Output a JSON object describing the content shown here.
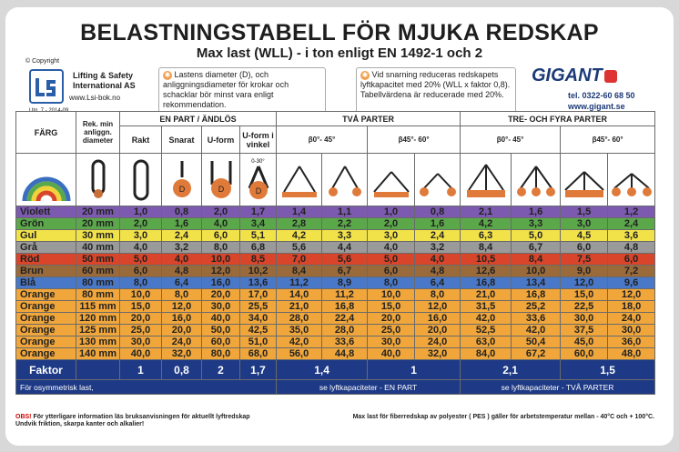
{
  "header": {
    "title": "BELASTNINGSTABELL FÖR MJUKA REDSKAP",
    "subtitle": "Max last (WLL) - i ton enligt EN 1492-1 och 2",
    "copyright": "© Copyright",
    "company_line1": "Lifting & Safety",
    "company_line2": "International AS",
    "company_web": "www.Lsi-bok.no",
    "edition": "Utg. 7 - 2014-09",
    "note1": "Lastens diameter (D), och anliggningsdiameter för krokar och schacklar bör minst vara enligt rekommendation.",
    "note2": "Vid snarning reduceras redskapets lyftkapacitet med 20% (WLL x faktor 0,8). Tabellvärdena är reducerade med 20%.",
    "brand": "GIGANT",
    "tel": "tel. 0322-60 68 50",
    "brand_web": "www.gigant.se"
  },
  "table": {
    "col_farg": "FÄRG",
    "col_diam": "Rek. min anliggn. diameter",
    "group_en_part": "EN PART / ÄNDLÖS",
    "group_tva": "TVÅ PARTER",
    "group_tre": "TRE- OCH FYRA PARTER",
    "sub_rakt": "Rakt",
    "sub_snarat": "Snarat",
    "sub_uform": "U-form",
    "sub_uvinkel": "U-form i vinkel",
    "sub_b1": "β0°- 45°",
    "sub_b2": "β45°- 60°",
    "sub_b3": "β0°- 45°",
    "sub_b4": "β45°- 60°",
    "angle_label": "0-30°",
    "rows": [
      {
        "color": "Violett",
        "diam": "20 mm",
        "bg": "#7c5ab0",
        "vals": [
          "1,0",
          "0,8",
          "2,0",
          "1,7",
          "1,4",
          "1,1",
          "1,0",
          "0,8",
          "2,1",
          "1,6",
          "1,5",
          "1,2"
        ]
      },
      {
        "color": "Grön",
        "diam": "20 mm",
        "bg": "#5ba84a",
        "vals": [
          "2,0",
          "1,6",
          "4,0",
          "3,4",
          "2,8",
          "2,2",
          "2,0",
          "1,6",
          "4,2",
          "3,3",
          "3,0",
          "2,4"
        ]
      },
      {
        "color": "Gul",
        "diam": "30 mm",
        "bg": "#f2e24a",
        "vals": [
          "3,0",
          "2,4",
          "6,0",
          "5,1",
          "4,2",
          "3,3",
          "3,0",
          "2,4",
          "6,3",
          "5,0",
          "4,5",
          "3,6"
        ]
      },
      {
        "color": "Grå",
        "diam": "40 mm",
        "bg": "#9a9a9a",
        "vals": [
          "4,0",
          "3,2",
          "8,0",
          "6,8",
          "5,6",
          "4,4",
          "4,0",
          "3,2",
          "8,4",
          "6,7",
          "6,0",
          "4,8"
        ]
      },
      {
        "color": "Röd",
        "diam": "50 mm",
        "bg": "#d8452a",
        "vals": [
          "5,0",
          "4,0",
          "10,0",
          "8,5",
          "7,0",
          "5,6",
          "5,0",
          "4,0",
          "10,5",
          "8,4",
          "7,5",
          "6,0"
        ]
      },
      {
        "color": "Brun",
        "diam": "60 mm",
        "bg": "#9a6a3a",
        "vals": [
          "6,0",
          "4,8",
          "12,0",
          "10,2",
          "8,4",
          "6,7",
          "6,0",
          "4,8",
          "12,6",
          "10,0",
          "9,0",
          "7,2"
        ]
      },
      {
        "color": "Blå",
        "diam": "80 mm",
        "bg": "#4a78c8",
        "vals": [
          "8,0",
          "6,4",
          "16,0",
          "13,6",
          "11,2",
          "8,9",
          "8,0",
          "6,4",
          "16,8",
          "13,4",
          "12,0",
          "9,6"
        ]
      },
      {
        "color": "Orange",
        "diam": "80 mm",
        "bg": "#f0a63a",
        "vals": [
          "10,0",
          "8,0",
          "20,0",
          "17,0",
          "14,0",
          "11,2",
          "10,0",
          "8,0",
          "21,0",
          "16,8",
          "15,0",
          "12,0"
        ]
      },
      {
        "color": "Orange",
        "diam": "115 mm",
        "bg": "#f0a63a",
        "vals": [
          "15,0",
          "12,0",
          "30,0",
          "25,5",
          "21,0",
          "16,8",
          "15,0",
          "12,0",
          "31,5",
          "25,2",
          "22,5",
          "18,0"
        ]
      },
      {
        "color": "Orange",
        "diam": "120 mm",
        "bg": "#f0a63a",
        "vals": [
          "20,0",
          "16,0",
          "40,0",
          "34,0",
          "28,0",
          "22,4",
          "20,0",
          "16,0",
          "42,0",
          "33,6",
          "30,0",
          "24,0"
        ]
      },
      {
        "color": "Orange",
        "diam": "125 mm",
        "bg": "#f0a63a",
        "vals": [
          "25,0",
          "20,0",
          "50,0",
          "42,5",
          "35,0",
          "28,0",
          "25,0",
          "20,0",
          "52,5",
          "42,0",
          "37,5",
          "30,0"
        ]
      },
      {
        "color": "Orange",
        "diam": "130 mm",
        "bg": "#f0a63a",
        "vals": [
          "30,0",
          "24,0",
          "60,0",
          "51,0",
          "42,0",
          "33,6",
          "30,0",
          "24,0",
          "63,0",
          "50,4",
          "45,0",
          "36,0"
        ]
      },
      {
        "color": "Orange",
        "diam": "140 mm",
        "bg": "#f0a63a",
        "vals": [
          "40,0",
          "32,0",
          "80,0",
          "68,0",
          "56,0",
          "44,8",
          "40,0",
          "32,0",
          "84,0",
          "67,2",
          "60,0",
          "48,0"
        ]
      }
    ],
    "factor_label": "Faktor",
    "factors": [
      "1",
      "0,8",
      "2",
      "1,7",
      "1,4",
      "1",
      "2,1",
      "1,5"
    ],
    "footer_left": "För osymmetrisk last,",
    "footer_mid": "se lyftkapaciteter - EN PART",
    "footer_right": "se lyftkapaciteter - TVÅ PARTER"
  },
  "bottom": {
    "obs": "OBS!",
    "line1": "För ytterligare information läs bruksanvisningen för aktuellt lyftredskap",
    "line2": "Undvik friktion, skarpa kanter och alkalier!",
    "right": "Max last för fiberredskap av polyester ( PES ) gäller för arbetstemperatur mellan - 40°C och + 100°C."
  }
}
